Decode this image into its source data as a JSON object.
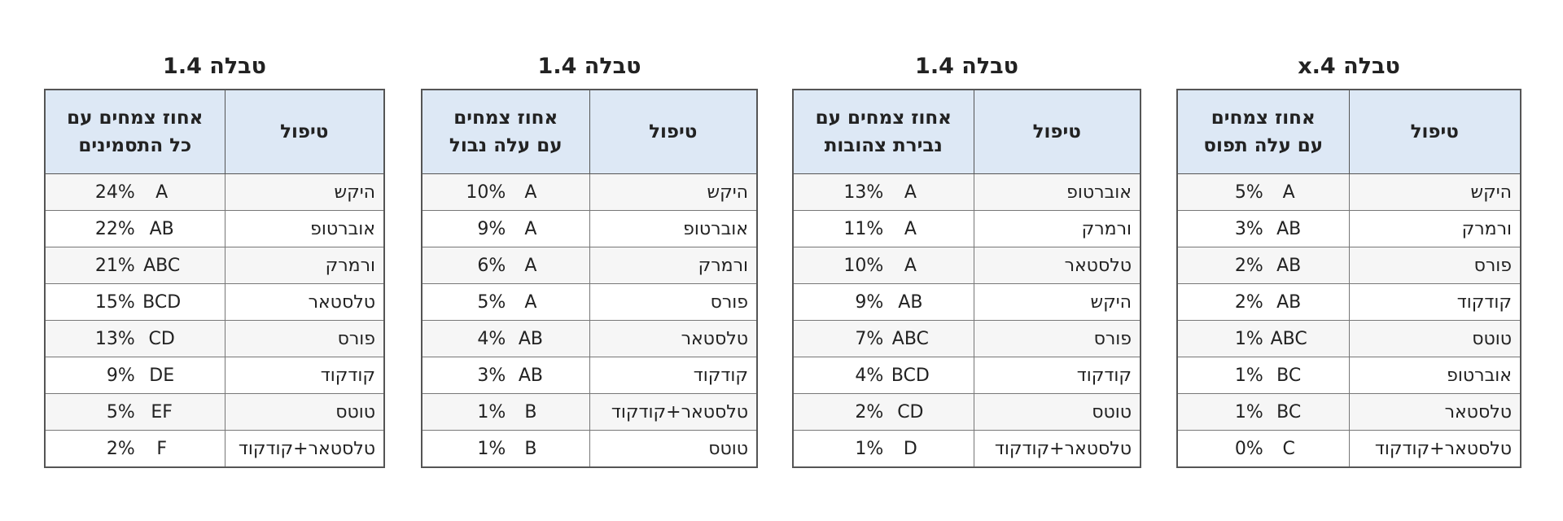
{
  "tables": [
    {
      "title": "טבלה x.4",
      "headers": [
        "טיפול",
        "אחוז צמחים\nעם עלה תפוס"
      ],
      "rows": [
        [
          "היקש",
          "5%",
          "A"
        ],
        [
          "ורמרק",
          "3%",
          "AB"
        ],
        [
          "פורס",
          "2%",
          "AB"
        ],
        [
          "קודקוד",
          "2%",
          "AB"
        ],
        [
          "טוטס",
          "1%",
          "ABC"
        ],
        [
          "אוברטופ",
          "1%",
          "BC"
        ],
        [
          "טלסטאר",
          "1%",
          "BC"
        ],
        [
          "טלסטאר+קודקוד",
          "0%",
          "C"
        ]
      ]
    },
    {
      "title": "טבלה 1.4",
      "headers": [
        "טיפול",
        "אחוז צמחים עם\nנבירת צהובות"
      ],
      "rows": [
        [
          "אוברטופ",
          "13%",
          "A"
        ],
        [
          "ורמרק",
          "11%",
          "A"
        ],
        [
          "טלסטאר",
          "10%",
          "A"
        ],
        [
          "היקש",
          "9%",
          "AB"
        ],
        [
          "פורס",
          "7%",
          "ABC"
        ],
        [
          "קודקוד",
          "4%",
          "BCD"
        ],
        [
          "טוטס",
          "2%",
          "CD"
        ],
        [
          "טלסטאר+קודקוד",
          "1%",
          "D"
        ]
      ]
    },
    {
      "title": "טבלה 1.4",
      "headers": [
        "טיפול",
        "אחוז צמחים\nעם עלה נבול"
      ],
      "rows": [
        [
          "היקש",
          "10%",
          "A"
        ],
        [
          "אוברטופ",
          "9%",
          "A"
        ],
        [
          "ורמרק",
          "6%",
          "A"
        ],
        [
          "פורס",
          "5%",
          "A"
        ],
        [
          "טלסטאר",
          "4%",
          "AB"
        ],
        [
          "קודקוד",
          "3%",
          "AB"
        ],
        [
          "טלסטאר+קודקוד",
          "1%",
          "B"
        ],
        [
          "טוטס",
          "1%",
          "B"
        ]
      ]
    },
    {
      "title": "טבלה 1.4",
      "headers": [
        "טיפול",
        "אחוז צמחים עם\nכל התסמינים"
      ],
      "rows": [
        [
          "היקש",
          "24%",
          "A"
        ],
        [
          "אוברטופ",
          "22%",
          "AB"
        ],
        [
          "ורמרק",
          "21%",
          "ABC"
        ],
        [
          "טלסטאר",
          "15%",
          "BCD"
        ],
        [
          "פורס",
          "13%",
          "CD"
        ],
        [
          "קודקוד",
          "9%",
          "DE"
        ],
        [
          "טוטס",
          "5%",
          "EF"
        ],
        [
          "טלסטאר+קודקוד",
          "2%",
          "F"
        ]
      ]
    }
  ]
}
